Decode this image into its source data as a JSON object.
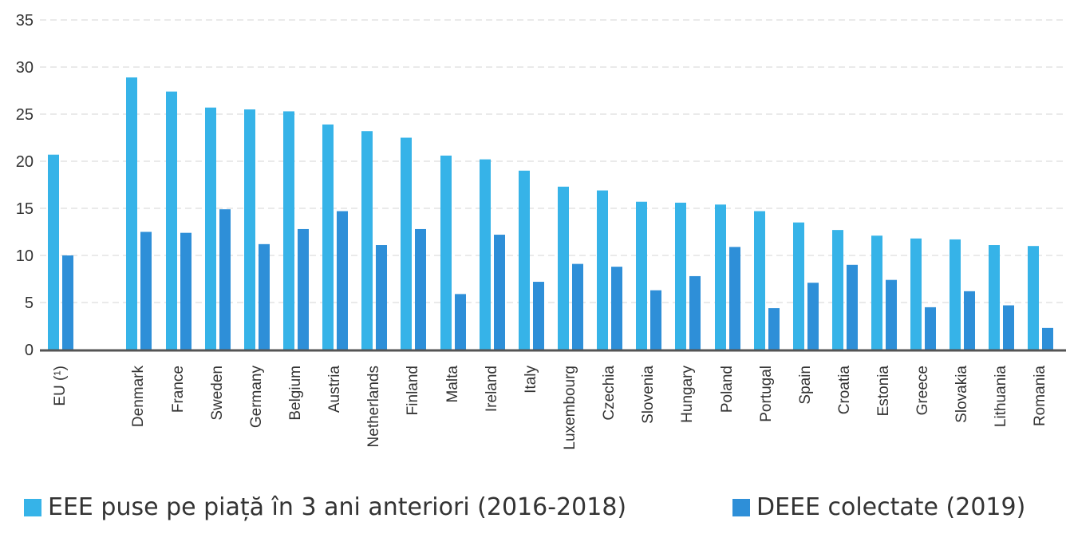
{
  "chart_data": {
    "type": "bar",
    "categories": [
      "EU (¹)",
      "Denmark",
      "France",
      "Sweden",
      "Germany",
      "Belgium",
      "Austria",
      "Netherlands",
      "Finland",
      "Malta",
      "Ireland",
      "Italy",
      "Luxembourg",
      "Czechia",
      "Slovenia",
      "Hungary",
      "Poland",
      "Portugal",
      "Spain",
      "Croatia",
      "Estonia",
      "Greece",
      "Slovakia",
      "Lithuania",
      "Romania"
    ],
    "series": [
      {
        "name": "EEE puse pe piață în 3 ani anteriori (2016-2018)",
        "color": "#36B3E8",
        "values": [
          20.7,
          28.9,
          27.4,
          25.7,
          25.5,
          25.3,
          23.9,
          23.2,
          22.5,
          20.6,
          20.2,
          19.0,
          17.3,
          16.9,
          15.7,
          15.6,
          15.4,
          14.7,
          13.5,
          12.7,
          12.1,
          11.8,
          11.7,
          11.1,
          11.0
        ]
      },
      {
        "name": "DEEE colectate (2019)",
        "color": "#2E8FD8",
        "values": [
          10.0,
          12.5,
          12.4,
          14.9,
          11.2,
          12.8,
          14.7,
          11.1,
          12.8,
          5.9,
          12.2,
          7.2,
          9.1,
          8.8,
          6.3,
          7.8,
          10.9,
          4.4,
          7.1,
          9.0,
          7.4,
          4.5,
          6.2,
          4.7,
          2.3
        ]
      }
    ],
    "ylim": [
      0,
      35
    ],
    "yticks": [
      0,
      5,
      10,
      15,
      20,
      25,
      30,
      35
    ],
    "grid": true,
    "legend_position": "bottom"
  }
}
